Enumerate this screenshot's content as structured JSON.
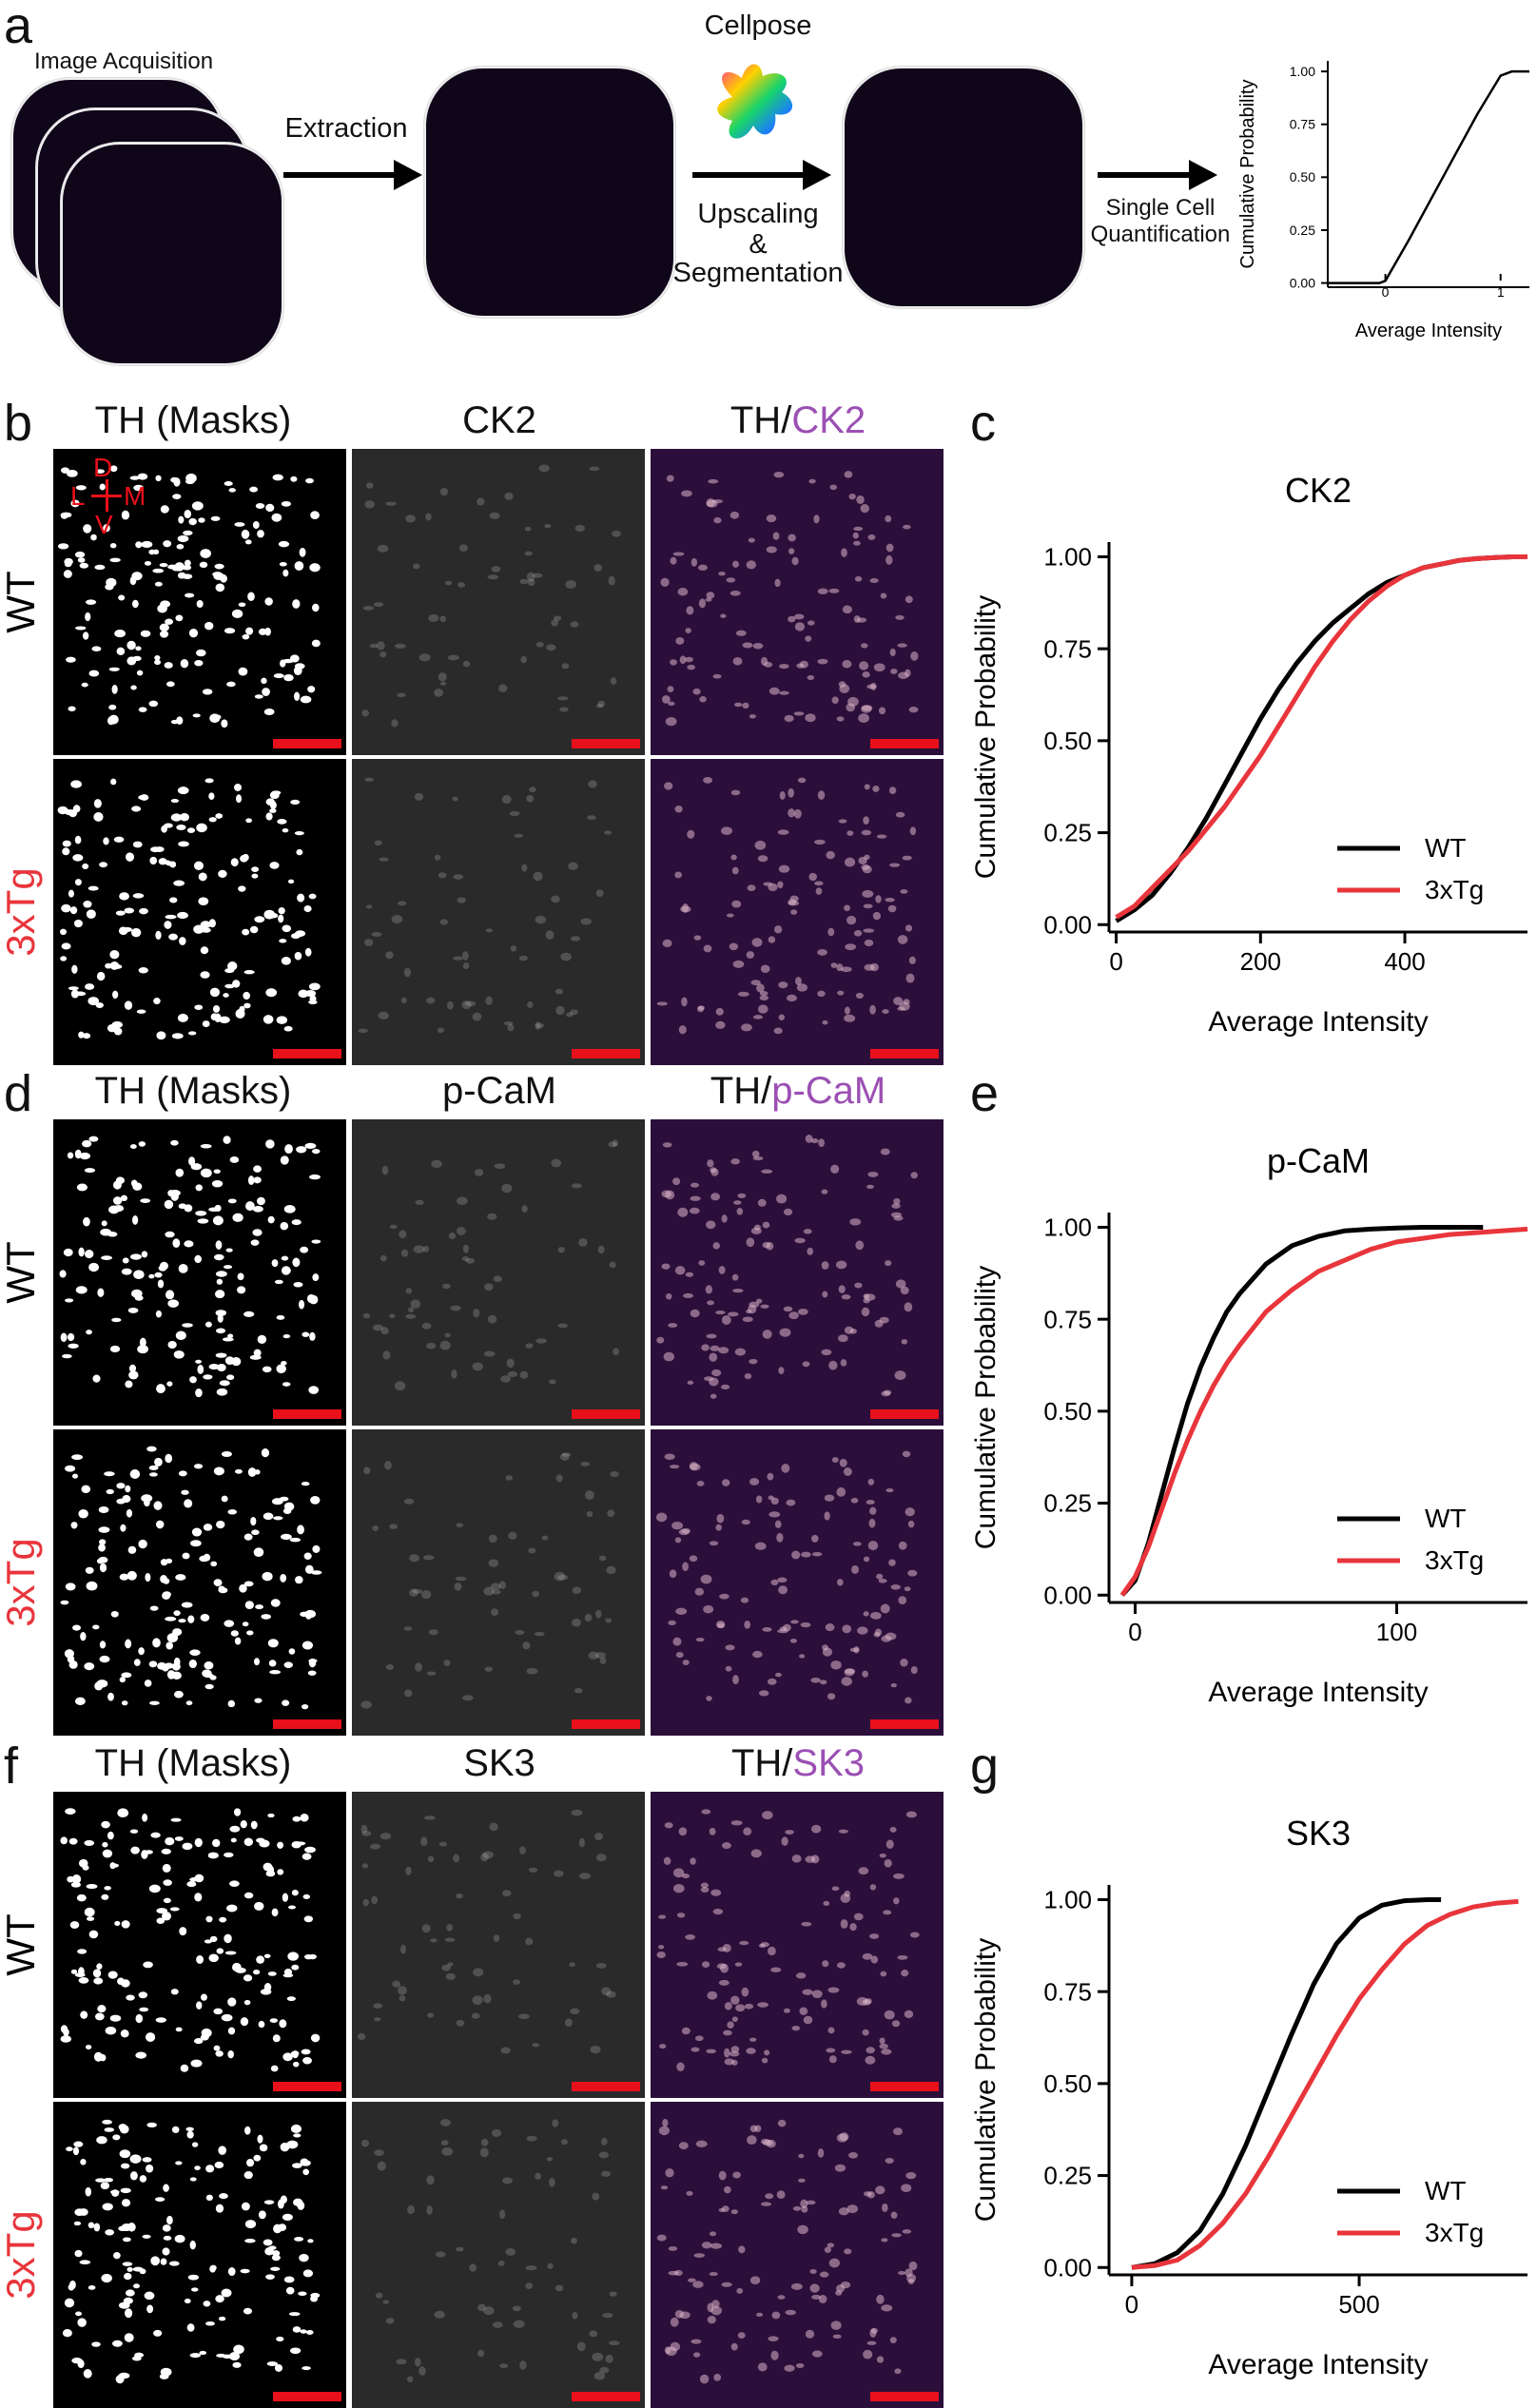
{
  "panel_a": {
    "letter": "a",
    "image_acquisition": "Image Acquisition",
    "extraction": "Extraction",
    "cellpose": "Cellpose",
    "upscaling": "Upscaling",
    "ampersand": "&",
    "segmentation": "Segmentation",
    "single_cell": "Single Cell",
    "quantification": "Quantification",
    "mini_chart": {
      "ylabel": "Cumulative Probability",
      "xlabel": "Average Intensity",
      "yticks": [
        "0.00",
        "0.25",
        "0.50",
        "0.75",
        "1.00"
      ],
      "xticks": [
        "0",
        "1"
      ]
    }
  },
  "image_rows": [
    {
      "letter": "b",
      "titles": [
        "TH (Masks)",
        "CK2",
        "TH/",
        "CK2"
      ],
      "rows": [
        "WT",
        "3xTg"
      ],
      "orientation": {
        "d": "D",
        "l": "L",
        "m": "M",
        "v": "V"
      }
    },
    {
      "letter": "d",
      "titles": [
        "TH (Masks)",
        "p-CaM",
        "TH/",
        "p-CaM"
      ],
      "rows": [
        "WT",
        "3xTg"
      ]
    },
    {
      "letter": "f",
      "titles": [
        "TH (Masks)",
        "SK3",
        "TH/",
        "SK3"
      ],
      "rows": [
        "WT",
        "3xTg"
      ]
    }
  ],
  "colors": {
    "wt": "#000000",
    "tg": "#e8353b",
    "merge_title": "#9b4fb3",
    "scalebar": "#e8101a"
  },
  "chart_data": [
    {
      "panel": "c",
      "type": "line",
      "title": "CK2",
      "xlabel": "Average Intensity",
      "ylabel": "Cumulative Probability",
      "xlim": [
        -10,
        570
      ],
      "ylim": [
        -0.02,
        1.04
      ],
      "xticks": [
        0,
        200,
        400
      ],
      "yticks": [
        "0.00",
        "0.25",
        "0.50",
        "0.75",
        "1.00"
      ],
      "legend": "lower-right",
      "series": [
        {
          "name": "WT",
          "color": "#000000",
          "x": [
            0,
            25,
            50,
            75,
            100,
            125,
            150,
            175,
            200,
            225,
            250,
            275,
            300,
            325,
            350,
            375,
            400,
            425,
            450,
            475,
            500,
            525,
            550,
            570
          ],
          "y": [
            0.01,
            0.04,
            0.08,
            0.14,
            0.21,
            0.29,
            0.38,
            0.47,
            0.56,
            0.64,
            0.71,
            0.77,
            0.82,
            0.86,
            0.9,
            0.93,
            0.95,
            0.97,
            0.98,
            0.99,
            0.995,
            0.998,
            1.0,
            1.0
          ]
        },
        {
          "name": "3xTg",
          "color": "#e8353b",
          "x": [
            0,
            25,
            50,
            75,
            100,
            125,
            150,
            175,
            200,
            225,
            250,
            275,
            300,
            325,
            350,
            375,
            400,
            425,
            450,
            475,
            500,
            525,
            550,
            570
          ],
          "y": [
            0.02,
            0.05,
            0.1,
            0.15,
            0.2,
            0.26,
            0.32,
            0.39,
            0.46,
            0.54,
            0.62,
            0.7,
            0.77,
            0.83,
            0.88,
            0.92,
            0.95,
            0.97,
            0.98,
            0.99,
            0.995,
            0.998,
            1.0,
            1.0
          ]
        }
      ]
    },
    {
      "panel": "e",
      "type": "line",
      "title": "p-CaM",
      "xlabel": "Average Intensity",
      "ylabel": "Cumulative Probability",
      "xlim": [
        -10,
        150
      ],
      "ylim": [
        -0.02,
        1.04
      ],
      "xticks": [
        0,
        100
      ],
      "yticks": [
        "0.00",
        "0.25",
        "0.50",
        "0.75",
        "1.00"
      ],
      "legend": "lower-right",
      "series": [
        {
          "name": "WT",
          "color": "#000000",
          "x": [
            -5,
            0,
            5,
            10,
            15,
            20,
            25,
            30,
            35,
            40,
            50,
            60,
            70,
            80,
            90,
            100,
            110,
            120,
            133
          ],
          "y": [
            0.0,
            0.04,
            0.14,
            0.27,
            0.4,
            0.52,
            0.62,
            0.7,
            0.77,
            0.82,
            0.9,
            0.95,
            0.975,
            0.99,
            0.995,
            0.998,
            1.0,
            1.0,
            1.0
          ]
        },
        {
          "name": "3xTg",
          "color": "#e8353b",
          "x": [
            -5,
            0,
            5,
            10,
            15,
            20,
            25,
            30,
            35,
            40,
            50,
            60,
            70,
            80,
            90,
            100,
            110,
            120,
            130,
            140,
            150
          ],
          "y": [
            0.0,
            0.05,
            0.13,
            0.23,
            0.33,
            0.42,
            0.5,
            0.57,
            0.63,
            0.68,
            0.77,
            0.83,
            0.88,
            0.91,
            0.94,
            0.96,
            0.97,
            0.98,
            0.985,
            0.99,
            0.995
          ]
        }
      ]
    },
    {
      "panel": "g",
      "type": "line",
      "title": "SK3",
      "xlabel": "Average Intensity",
      "ylabel": "Cumulative Probability",
      "xlim": [
        -50,
        870
      ],
      "ylim": [
        -0.02,
        1.04
      ],
      "xticks": [
        0,
        500
      ],
      "yticks": [
        "0.00",
        "0.25",
        "0.50",
        "0.75",
        "1.00"
      ],
      "legend": "lower-right",
      "series": [
        {
          "name": "WT",
          "color": "#000000",
          "x": [
            0,
            50,
            100,
            150,
            200,
            250,
            300,
            350,
            400,
            450,
            500,
            550,
            600,
            650,
            680
          ],
          "y": [
            0.0,
            0.01,
            0.04,
            0.1,
            0.2,
            0.33,
            0.48,
            0.63,
            0.77,
            0.88,
            0.95,
            0.985,
            0.997,
            1.0,
            1.0
          ]
        },
        {
          "name": "3xTg",
          "color": "#e8353b",
          "x": [
            0,
            50,
            100,
            150,
            200,
            250,
            300,
            350,
            400,
            450,
            500,
            550,
            600,
            650,
            700,
            750,
            800,
            850
          ],
          "y": [
            0.0,
            0.005,
            0.02,
            0.06,
            0.12,
            0.2,
            0.3,
            0.41,
            0.52,
            0.63,
            0.73,
            0.81,
            0.88,
            0.93,
            0.96,
            0.98,
            0.99,
            0.995
          ]
        }
      ]
    }
  ]
}
